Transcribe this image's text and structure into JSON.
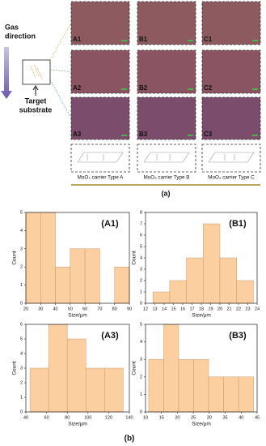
{
  "panel_a": {
    "grid_labels": [
      [
        "A1",
        "B1",
        "C1"
      ],
      [
        "A2",
        "B2",
        "C2"
      ],
      [
        "A3",
        "B3",
        "C3"
      ]
    ],
    "captions": [
      "MoO₃ carrier Type A",
      "MoO₃ carrier Type B",
      "MoO₃ carrier Type C"
    ],
    "gas_direction": [
      "Gas",
      "direction"
    ],
    "target_substrate": [
      "Target",
      "substrate"
    ],
    "label": "(a)"
  },
  "panel_b_label": "(b)",
  "chart_data": [
    {
      "type": "histogram",
      "label": "(A1)",
      "xlabel": "Size/μm",
      "ylabel": "Count",
      "color": "#fbcf9f",
      "bins": [
        20,
        30,
        40,
        50,
        60,
        70,
        80,
        90
      ],
      "values": [
        5,
        5,
        2,
        3,
        3,
        0,
        2
      ],
      "xlim": [
        20,
        90
      ],
      "xticks": [
        20,
        30,
        40,
        50,
        60,
        70,
        80,
        90
      ],
      "ylim": [
        0,
        5
      ],
      "yticks": [
        0,
        1,
        2,
        3,
        4,
        5
      ]
    },
    {
      "type": "histogram",
      "label": "(B1)",
      "xlabel": "Size/μm",
      "ylabel": "Count",
      "color": "#fbcf9f",
      "bins": [
        12.8,
        14.6,
        16.4,
        18.2,
        20,
        21.8,
        23.6
      ],
      "values": [
        1,
        2,
        4,
        7,
        4,
        2
      ],
      "xlim": [
        12,
        24
      ],
      "xticks": [
        12,
        13,
        14,
        15,
        16,
        17,
        18,
        19,
        20,
        21,
        22,
        23,
        24
      ],
      "ylim": [
        0,
        8
      ],
      "yticks": [
        0,
        1,
        2,
        3,
        4,
        5,
        6,
        7,
        8
      ]
    },
    {
      "type": "histogram",
      "label": "(A3)",
      "xlabel": "Size/μm",
      "ylabel": "Count",
      "color": "#fbcf9f",
      "bins": [
        44,
        62,
        80,
        98,
        116,
        134
      ],
      "values": [
        3,
        6,
        5,
        3,
        3
      ],
      "xlim": [
        40,
        140
      ],
      "xticks": [
        40,
        60,
        80,
        100,
        120,
        140
      ],
      "ylim": [
        0,
        6
      ],
      "yticks": [
        0,
        1,
        2,
        3,
        4,
        5,
        6
      ]
    },
    {
      "type": "histogram",
      "label": "(B3)",
      "xlabel": "Size/μm",
      "ylabel": "Count",
      "color": "#fbcf9f",
      "bins": [
        11,
        15.7,
        20.4,
        25.1,
        29.8,
        34.5,
        39.2,
        43.9
      ],
      "values": [
        3,
        5,
        3,
        3,
        2,
        2,
        2
      ],
      "xlim": [
        10,
        45
      ],
      "xticks": [
        10,
        15,
        20,
        25,
        30,
        35,
        40,
        45
      ],
      "ylim": [
        0,
        5
      ],
      "yticks": [
        0,
        1,
        2,
        3,
        4,
        5
      ]
    }
  ]
}
